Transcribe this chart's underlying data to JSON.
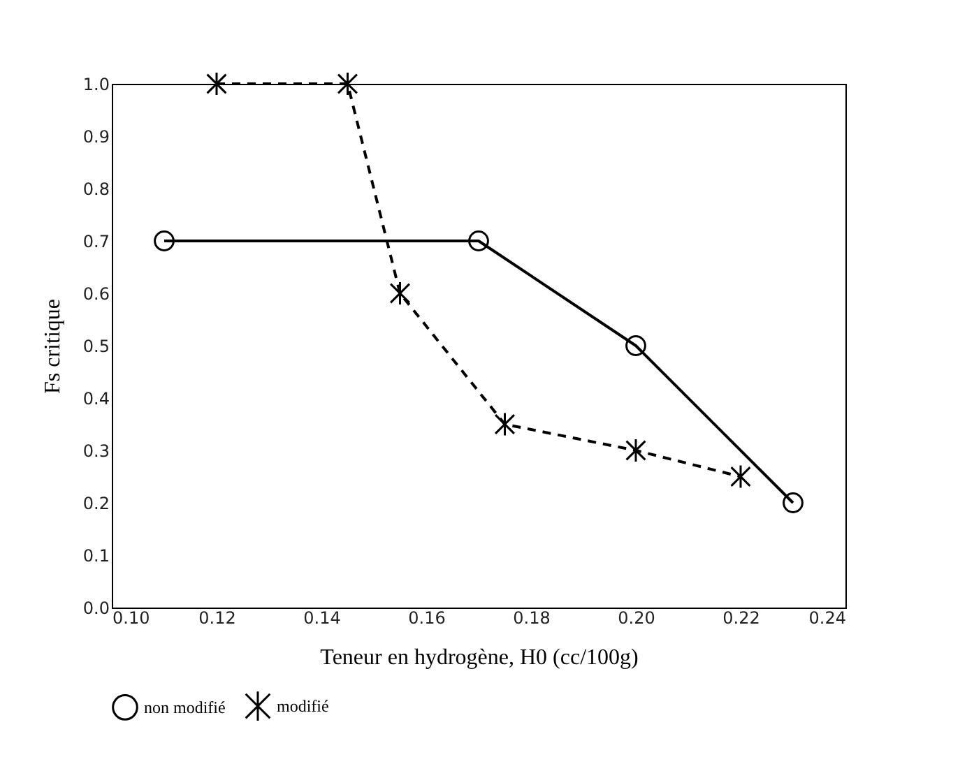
{
  "chart_data": {
    "type": "line",
    "xlabel": "Teneur en hydrogène, H0 (cc/100g)",
    "ylabel": "Fs critique",
    "legend": "bottom",
    "grid": false,
    "xlim": [
      0.1,
      0.24
    ],
    "xticks": [
      {
        "value": 0.1,
        "label": "0.10"
      },
      {
        "value": 0.12,
        "label": "0.12"
      },
      {
        "value": 0.14,
        "label": "0.14"
      },
      {
        "value": 0.16,
        "label": "0.16"
      },
      {
        "value": 0.18,
        "label": "0.18"
      },
      {
        "value": 0.2,
        "label": "0.20"
      },
      {
        "value": 0.22,
        "label": "0.22"
      },
      {
        "value": 0.24,
        "label": "0.24"
      }
    ],
    "ylim": [
      0,
      1
    ],
    "yticks": [
      {
        "value": 0,
        "label": "0.0"
      },
      {
        "value": 0.1,
        "label": "0.1"
      },
      {
        "value": 0.2,
        "label": "0.2"
      },
      {
        "value": 0.3,
        "label": "0.3"
      },
      {
        "value": 0.4,
        "label": "0.4"
      },
      {
        "value": 0.5,
        "label": "0.5"
      },
      {
        "value": 0.6,
        "label": "0.6"
      },
      {
        "value": 0.7,
        "label": "0.7"
      },
      {
        "value": 0.8,
        "label": "0.8"
      },
      {
        "value": 0.9,
        "label": "0.9"
      },
      {
        "value": 1,
        "label": "1.0"
      }
    ],
    "series": [
      {
        "name": "non modifié",
        "color": "#000000",
        "marker": "circle",
        "line_style": "solid",
        "x": [
          0.11,
          0.17,
          0.2,
          0.23
        ],
        "values": [
          0.7,
          0.7,
          0.5,
          0.2
        ]
      },
      {
        "name": "modifié",
        "color": "#000000",
        "marker": "cross",
        "line_style": "dashed",
        "x": [
          0.12,
          0.145,
          0.155,
          0.175,
          0.2,
          0.22
        ],
        "values": [
          1.0,
          1.0,
          0.6,
          0.35,
          0.3,
          0.25
        ]
      }
    ]
  }
}
